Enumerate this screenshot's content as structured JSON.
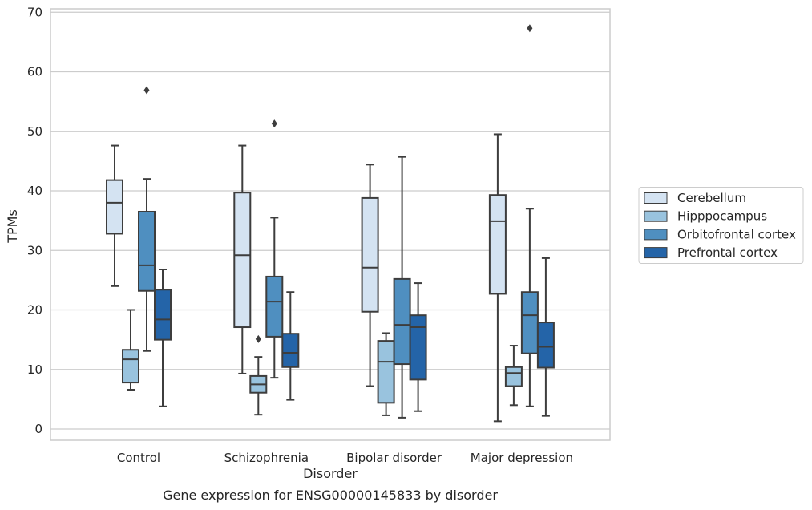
{
  "chart_data": {
    "type": "box",
    "xlabel": "Disorder",
    "ylabel": "TPMs",
    "caption": "Gene expression for ENSG00000145833 by disorder",
    "ylim": [
      -2,
      70.5
    ],
    "yticks": [
      0,
      10,
      20,
      30,
      40,
      50,
      60,
      70
    ],
    "grid": "horizontal",
    "legend_position": "right",
    "categories": [
      "Control",
      "Schizophrenia",
      "Bipolar disorder",
      "Major depression"
    ],
    "series": [
      {
        "name": "Cerebellum",
        "color": "#d4e3f2",
        "boxes": [
          {
            "whislo": 24.0,
            "q1": 32.8,
            "med": 38.0,
            "q3": 41.8,
            "whishi": 47.6,
            "fliers": []
          },
          {
            "whislo": 9.3,
            "q1": 17.1,
            "med": 29.2,
            "q3": 39.7,
            "whishi": 47.6,
            "fliers": []
          },
          {
            "whislo": 7.2,
            "q1": 19.7,
            "med": 27.1,
            "q3": 38.8,
            "whishi": 44.4,
            "fliers": []
          },
          {
            "whislo": 1.3,
            "q1": 22.7,
            "med": 34.9,
            "q3": 39.3,
            "whishi": 49.5,
            "fliers": []
          }
        ]
      },
      {
        "name": "Hipppocampus",
        "color": "#99c3de",
        "boxes": [
          {
            "whislo": 6.6,
            "q1": 7.8,
            "med": 11.7,
            "q3": 13.3,
            "whishi": 20.0,
            "fliers": []
          },
          {
            "whislo": 2.4,
            "q1": 6.1,
            "med": 7.5,
            "q3": 8.9,
            "whishi": 12.1,
            "fliers": [
              15.1
            ]
          },
          {
            "whislo": 2.3,
            "q1": 4.4,
            "med": 11.3,
            "q3": 14.8,
            "whishi": 16.1,
            "fliers": []
          },
          {
            "whislo": 4.0,
            "q1": 7.2,
            "med": 9.4,
            "q3": 10.4,
            "whishi": 14.0,
            "fliers": []
          }
        ]
      },
      {
        "name": "Orbitofrontal cortex",
        "color": "#4f8fc0",
        "boxes": [
          {
            "whislo": 13.1,
            "q1": 23.2,
            "med": 27.5,
            "q3": 36.5,
            "whishi": 42.0,
            "fliers": [
              56.9
            ]
          },
          {
            "whislo": 8.6,
            "q1": 15.5,
            "med": 21.4,
            "q3": 25.6,
            "whishi": 35.5,
            "fliers": [
              51.3
            ]
          },
          {
            "whislo": 1.9,
            "q1": 10.9,
            "med": 17.5,
            "q3": 25.2,
            "whishi": 45.7,
            "fliers": []
          },
          {
            "whislo": 3.8,
            "q1": 12.7,
            "med": 19.1,
            "q3": 23.0,
            "whishi": 37.0,
            "fliers": [
              67.3
            ]
          }
        ]
      },
      {
        "name": "Prefrontal cortex",
        "color": "#2464a8",
        "boxes": [
          {
            "whislo": 3.8,
            "q1": 15.0,
            "med": 18.4,
            "q3": 23.4,
            "whishi": 26.8,
            "fliers": []
          },
          {
            "whislo": 4.9,
            "q1": 10.4,
            "med": 12.8,
            "q3": 16.0,
            "whishi": 23.0,
            "fliers": []
          },
          {
            "whislo": 3.0,
            "q1": 8.3,
            "med": 17.1,
            "q3": 19.1,
            "whishi": 24.5,
            "fliers": []
          },
          {
            "whislo": 2.2,
            "q1": 10.3,
            "med": 13.8,
            "q3": 17.9,
            "whishi": 28.7,
            "fliers": []
          }
        ]
      }
    ]
  }
}
